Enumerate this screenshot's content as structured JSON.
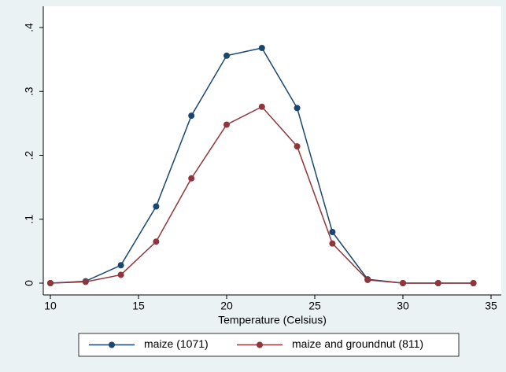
{
  "chart_data": {
    "type": "line",
    "xlabel": "Temperature (Celsius)",
    "x": [
      10,
      12,
      14,
      16,
      18,
      20,
      22,
      24,
      26,
      28,
      30,
      32,
      34
    ],
    "series": [
      {
        "name": "maize (1071)",
        "color": "#1a476f",
        "values": [
          0,
          0.003,
          0.028,
          0.12,
          0.262,
          0.356,
          0.368,
          0.274,
          0.08,
          0.006,
          0,
          0,
          0
        ]
      },
      {
        "name": "maize and groundnut (811)",
        "color": "#90353b",
        "values": [
          0,
          0.002,
          0.013,
          0.065,
          0.164,
          0.248,
          0.276,
          0.214,
          0.062,
          0.005,
          0,
          0,
          0
        ]
      }
    ],
    "xlim": [
      10,
      35
    ],
    "xticks": [
      10,
      15,
      20,
      25,
      30,
      35
    ],
    "ylim": [
      0,
      0.4
    ],
    "yticks": [
      0,
      {
        "value": 0.1,
        "label": ".1"
      },
      {
        "value": 0.2,
        "label": ".2"
      },
      {
        "value": 0.3,
        "label": ".3"
      },
      {
        "value": 0.4,
        "label": ".4"
      }
    ],
    "grid": false,
    "legend": "bottom"
  }
}
